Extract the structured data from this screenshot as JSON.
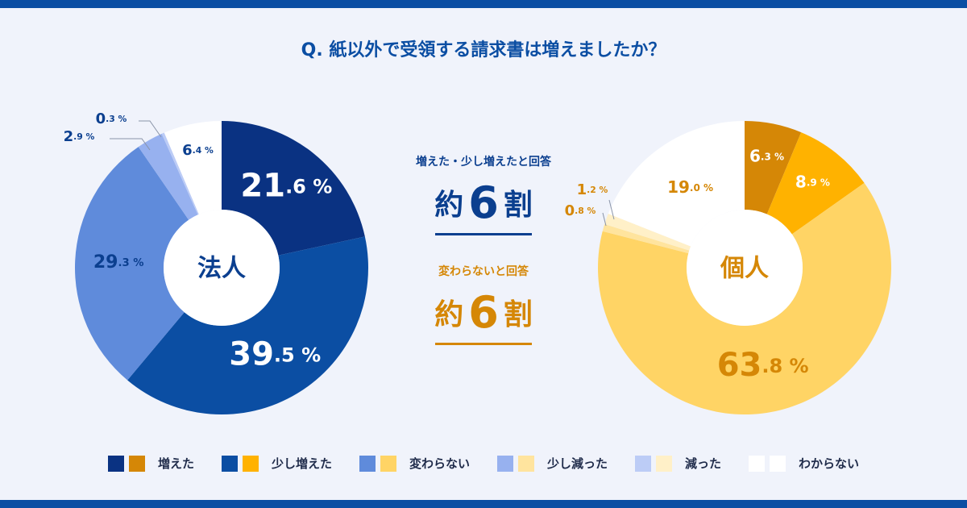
{
  "title": "Q. 紙以外で受領する請求書は増えましたか？",
  "colors": {
    "corporate": [
      "#0a3282",
      "#0b4ea3",
      "#5f8bdb",
      "#97b1ef",
      "#bcccf6",
      "#ffffff"
    ],
    "individual": [
      "#d58706",
      "#ffb200",
      "#ffd465",
      "#ffe49e",
      "#fff0c8",
      "#ffffff"
    ]
  },
  "summary": {
    "increase_label": "増えた・少し増えたと回答",
    "increase_prefix": "約",
    "increase_value": "6",
    "increase_suffix": "割",
    "same_label": "変わらないと回答",
    "same_prefix": "約",
    "same_value": "6",
    "same_suffix": "割"
  },
  "chart_data": [
    {
      "type": "pie",
      "title": "法人",
      "categories": [
        "増えた",
        "少し増えた",
        "変わらない",
        "少し減った",
        "減った",
        "わからない"
      ],
      "values": [
        21.6,
        39.5,
        29.3,
        2.9,
        0.3,
        6.4
      ],
      "unit": "%"
    },
    {
      "type": "pie",
      "title": "個人",
      "categories": [
        "増えた",
        "少し増えた",
        "変わらない",
        "少し減った",
        "減った",
        "わからない"
      ],
      "values": [
        6.3,
        8.9,
        63.8,
        0.8,
        1.2,
        19.0
      ],
      "unit": "%"
    }
  ],
  "legend": [
    "増えた",
    "少し増えた",
    "変わらない",
    "少し減った",
    "減った",
    "わからない"
  ]
}
